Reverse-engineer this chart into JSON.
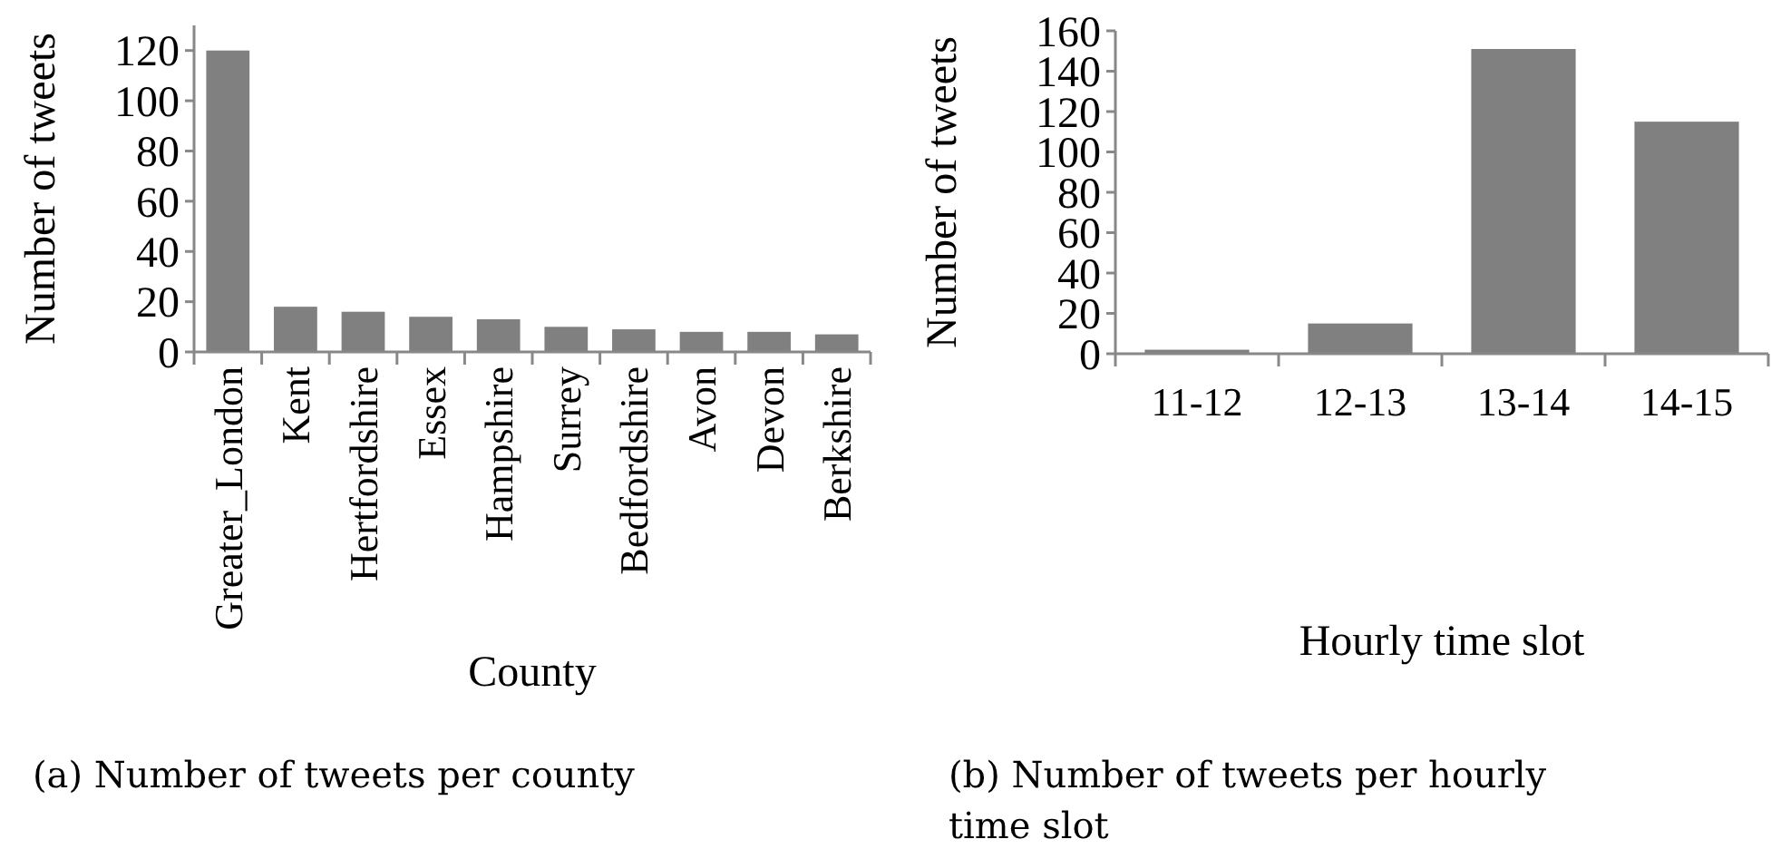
{
  "chart_data": [
    {
      "type": "bar",
      "title": "(a) Number of tweets per county",
      "xlabel": "County",
      "ylabel": "Number of tweets",
      "categories": [
        "Greater_London",
        "Kent",
        "Hertfordshire",
        "Essex",
        "Hampshire",
        "Surrey",
        "Bedfordshire",
        "Avon",
        "Devon",
        "Berkshire"
      ],
      "values": [
        120,
        18,
        16,
        14,
        13,
        10,
        9,
        8,
        8,
        7
      ],
      "color": "#808080",
      "ylim": [
        0,
        130
      ],
      "yticks": [
        0,
        20,
        40,
        60,
        80,
        100,
        120
      ],
      "grid": false
    },
    {
      "type": "bar",
      "title": "(b) Number of tweets per hourly time slot",
      "xlabel": "Hourly time slot",
      "ylabel": "Number of tweets",
      "categories": [
        "11-12",
        "12-13",
        "13-14",
        "14-15"
      ],
      "values": [
        2,
        15,
        151,
        115
      ],
      "color": "#808080",
      "ylim": [
        0,
        160
      ],
      "yticks": [
        0,
        20,
        40,
        60,
        80,
        100,
        120,
        140,
        160
      ],
      "grid": false
    }
  ]
}
